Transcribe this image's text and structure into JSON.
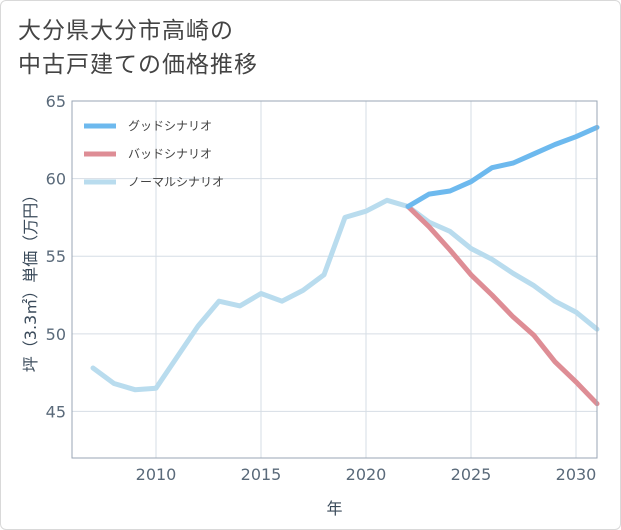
{
  "title_line1": "大分県大分市高崎の",
  "title_line2": "中古戸建ての価格推移",
  "chart_data": {
    "type": "line",
    "title": "大分県大分市高崎の中古戸建ての価格推移",
    "xlabel": "年",
    "ylabel": "坪（3.3㎡）単価（万円）",
    "xlim": [
      2006,
      2031
    ],
    "ylim": [
      42,
      65
    ],
    "xticks": [
      2010,
      2015,
      2020,
      2025,
      2030
    ],
    "yticks": [
      45,
      50,
      55,
      60,
      65
    ],
    "grid": true,
    "legend_position": "top-left",
    "series": [
      {
        "name": "グッドシナリオ",
        "color": "#6db9ee",
        "x": [
          2022,
          2023,
          2024,
          2025,
          2026,
          2027,
          2028,
          2029,
          2030,
          2031
        ],
        "y": [
          58.2,
          59.0,
          59.2,
          59.8,
          60.7,
          61.0,
          61.6,
          62.2,
          62.7,
          63.3
        ]
      },
      {
        "name": "バッドシナリオ",
        "color": "#de8d95",
        "x": [
          2022,
          2023,
          2024,
          2025,
          2026,
          2027,
          2028,
          2029,
          2030,
          2031
        ],
        "y": [
          58.2,
          56.9,
          55.4,
          53.8,
          52.5,
          51.1,
          49.9,
          48.2,
          46.9,
          45.5
        ]
      },
      {
        "name": "ノーマルシナリオ",
        "color": "#b9dcee",
        "x": [
          2007,
          2008,
          2009,
          2010,
          2011,
          2012,
          2013,
          2014,
          2015,
          2016,
          2017,
          2018,
          2019,
          2020,
          2021,
          2022,
          2023,
          2024,
          2025,
          2026,
          2027,
          2028,
          2029,
          2030,
          2031
        ],
        "y": [
          47.8,
          46.8,
          46.4,
          46.5,
          48.5,
          50.5,
          52.1,
          51.8,
          52.6,
          52.1,
          52.8,
          53.8,
          57.5,
          57.9,
          58.6,
          58.2,
          57.2,
          56.6,
          55.5,
          54.8,
          53.9,
          53.1,
          52.1,
          51.4,
          50.3
        ]
      }
    ]
  }
}
